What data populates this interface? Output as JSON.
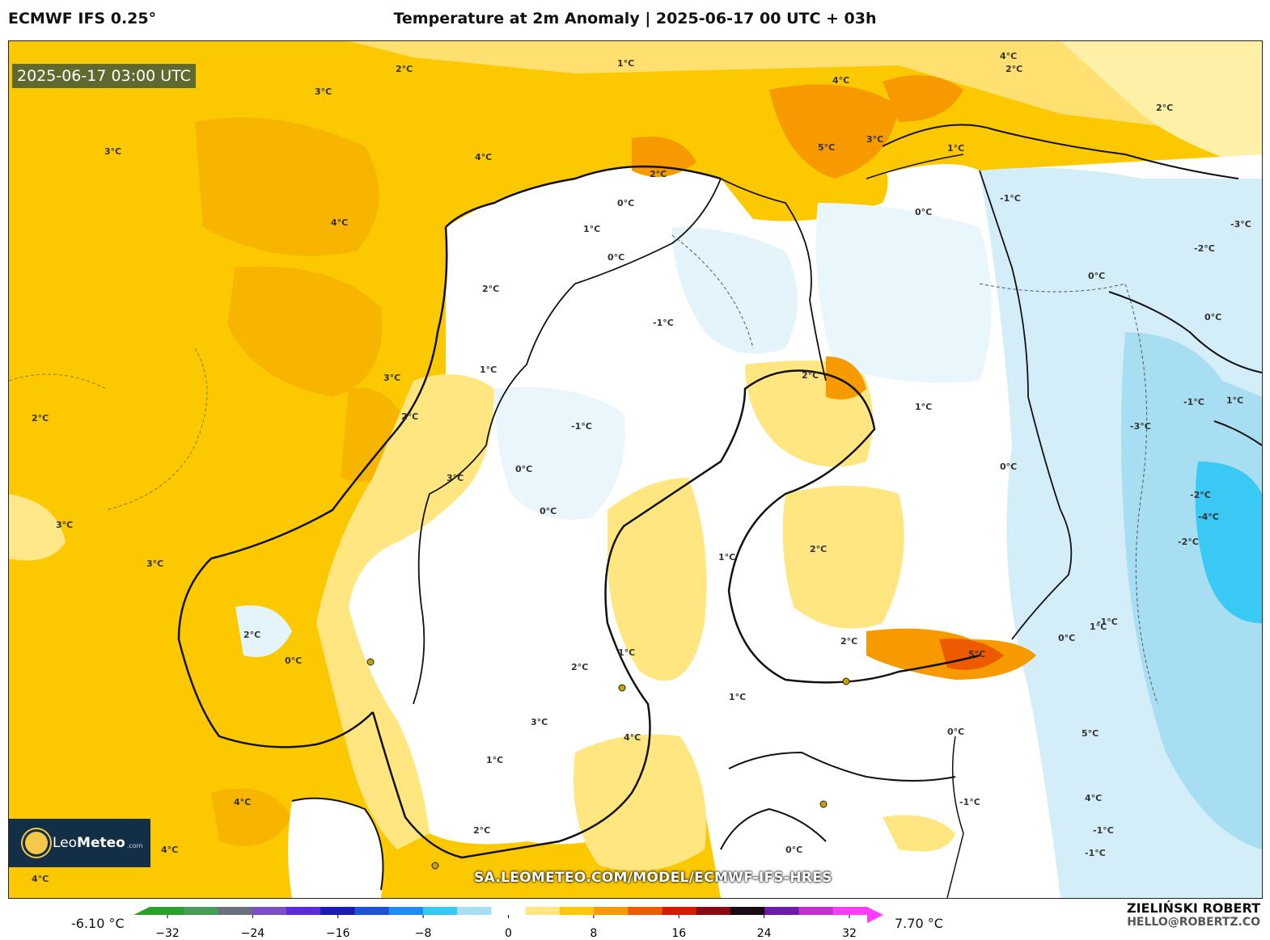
{
  "header": {
    "model": "ECMWF IFS 0.25°",
    "title": "Temperature at 2m Anomaly | 2025-06-17 00 UTC + 03h"
  },
  "map": {
    "timestamp": "2025-06-17 03:00 UTC",
    "region": "Scandinavia, Finland, Baltic",
    "watermark_url": "SA.LEOMETEO.COM/MODEL/ECMWF-IFS-HRES",
    "contour_labels": [
      "1°C",
      "2°C",
      "3°C",
      "3°C",
      "4°C",
      "4°C",
      "4°C",
      "3°C",
      "4°C",
      "5°C",
      "2°C",
      "0°C",
      "1°C",
      "0°C",
      "-1°C",
      "2°C",
      "1°C",
      "-1°C",
      "0°C",
      "0°C",
      "2°C",
      "3°C",
      "3°C",
      "1°C",
      "2°C",
      "-1°C",
      "1°C",
      "0°C",
      "0°C",
      "0°C",
      "1°C",
      "2°C",
      "5°C",
      "2°C",
      "1°C",
      "-1°C",
      "-2°C",
      "-3°C",
      "2°C",
      "2°C",
      "3°C",
      "4°C",
      "4°C",
      "1°C",
      "-1°C",
      "0°C",
      "0°C",
      "-2°C",
      "-4°C",
      "-3°C",
      "-1°C",
      "-2°C",
      "1°C",
      "0°C",
      "5°C",
      "0°C",
      "1°C",
      "3°C",
      "1°C",
      "0°C",
      "-1°C",
      "2°C",
      "4°C",
      "-1°C",
      "2°C",
      "3°C",
      "2°C",
      "4°C",
      "4°C",
      "2°C"
    ]
  },
  "logo": {
    "brand_light": "Leo",
    "brand_bold": "Meteo",
    "domain": ".com"
  },
  "colorbar": {
    "min_label": "-6.10 °C",
    "max_label": "7.70 °C",
    "ticks": [
      "−32",
      "−24",
      "−16",
      "−8",
      "0",
      "8",
      "16",
      "24",
      "32"
    ],
    "range": [
      -32,
      32
    ],
    "colors": [
      "#2ca02c",
      "#4a9a5a",
      "#6b6f7e",
      "#7a4fbf",
      "#5a2bdc",
      "#1a1ab8",
      "#1d4fd9",
      "#1f8bff",
      "#39c9f4",
      "#a8def2",
      "#ffffff",
      "#ffe680",
      "#fcc800",
      "#f79a00",
      "#ee5a00",
      "#d61a00",
      "#8a0a14",
      "#1a0a14",
      "#6a1ca8",
      "#c32fcc",
      "#ff3cff"
    ]
  },
  "author": {
    "name": "ZIELIŃSKI ROBERT",
    "email": "HELLO@ROBERTZ.CO"
  }
}
